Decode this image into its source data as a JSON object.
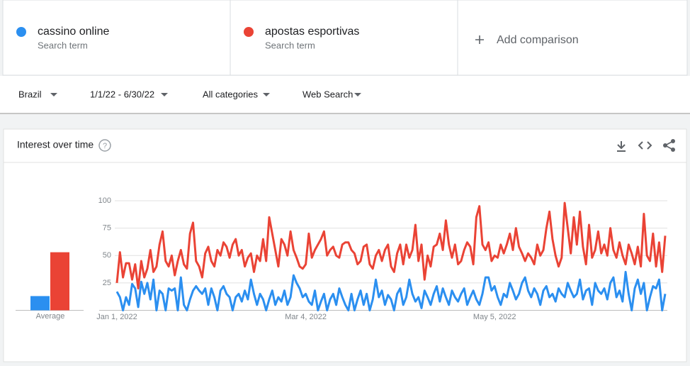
{
  "search_terms_subtitle": "Search term",
  "add_comparison": "Add comparison",
  "filters": [
    "Brazil",
    "1/1/22 - 6/30/22",
    "All categories",
    "Web Search"
  ],
  "chart_data": {
    "type": "line",
    "title": "Interest over time",
    "average_label": "Average",
    "categories": [
      "Jan 1, 2022",
      null,
      null,
      null,
      null,
      null,
      null,
      null,
      null,
      null,
      null,
      null,
      null,
      null,
      null,
      null,
      null,
      null,
      null,
      null,
      null,
      null,
      null,
      null,
      null,
      null,
      null,
      null,
      null,
      null,
      null,
      null,
      null,
      null,
      null,
      null,
      null,
      null,
      null,
      null,
      null,
      null,
      null,
      null,
      null,
      null,
      null,
      null,
      null,
      null,
      null,
      null,
      null,
      null,
      null,
      null,
      null,
      null,
      null,
      null,
      null,
      null,
      "Mar 4, 2022",
      null,
      null,
      null,
      null,
      null,
      null,
      null,
      null,
      null,
      null,
      null,
      null,
      null,
      null,
      null,
      null,
      null,
      null,
      null,
      null,
      null,
      null,
      null,
      null,
      null,
      null,
      null,
      null,
      null,
      null,
      null,
      null,
      null,
      null,
      null,
      null,
      null,
      null,
      null,
      null,
      null,
      null,
      null,
      null,
      null,
      null,
      null,
      null,
      null,
      null,
      null,
      null,
      null,
      null,
      null,
      null,
      null,
      null,
      null,
      null,
      null,
      "May 5, 2022",
      null,
      null,
      null,
      null,
      null,
      null,
      null,
      null,
      null,
      null,
      null,
      null,
      null,
      null,
      null,
      null,
      null,
      null,
      null,
      null,
      null,
      null,
      null,
      null,
      null,
      null,
      null,
      null,
      null,
      null,
      null,
      null,
      null,
      null,
      null,
      null,
      null,
      null,
      null,
      null,
      null,
      null,
      null,
      null,
      null,
      null,
      null,
      null,
      null,
      null,
      null,
      null,
      null,
      null,
      null,
      null
    ],
    "ylim": [
      0,
      100
    ],
    "yticks": [
      25,
      50,
      75,
      100
    ],
    "grid": true,
    "series": [
      {
        "name": "cassino online",
        "color": "#2b8ff0",
        "average": 13,
        "values": [
          17,
          12,
          0,
          12,
          5,
          24,
          20,
          3,
          26,
          15,
          25,
          10,
          28,
          0,
          18,
          15,
          0,
          20,
          18,
          20,
          0,
          30,
          5,
          0,
          10,
          18,
          22,
          18,
          15,
          20,
          5,
          20,
          12,
          0,
          18,
          22,
          15,
          12,
          0,
          12,
          15,
          8,
          18,
          10,
          28,
          15,
          5,
          15,
          10,
          0,
          10,
          18,
          5,
          12,
          8,
          18,
          5,
          12,
          32,
          25,
          20,
          12,
          15,
          8,
          5,
          18,
          0,
          8,
          15,
          0,
          10,
          15,
          5,
          20,
          12,
          5,
          0,
          15,
          0,
          10,
          18,
          5,
          15,
          0,
          10,
          28,
          12,
          18,
          5,
          14,
          10,
          0,
          15,
          20,
          5,
          12,
          28,
          15,
          8,
          12,
          2,
          18,
          12,
          5,
          15,
          22,
          8,
          20,
          12,
          5,
          18,
          12,
          8,
          15,
          20,
          5,
          12,
          18,
          10,
          5,
          15,
          30,
          30,
          18,
          22,
          12,
          5,
          15,
          12,
          25,
          18,
          10,
          15,
          25,
          30,
          18,
          12,
          20,
          15,
          5,
          18,
          22,
          12,
          15,
          8,
          20,
          15,
          12,
          25,
          18,
          12,
          15,
          28,
          10,
          18,
          20,
          5,
          25,
          18,
          15,
          20,
          10,
          25,
          30,
          12,
          18,
          8,
          35,
          15,
          0,
          20,
          28,
          15,
          25,
          0,
          12,
          22,
          20,
          28,
          0,
          15
        ]
      },
      {
        "name": "apostas esportivas",
        "color": "#ea4335",
        "average": 53,
        "values": [
          25,
          53,
          30,
          43,
          43,
          28,
          42,
          20,
          45,
          30,
          38,
          55,
          35,
          40,
          60,
          72,
          45,
          40,
          50,
          32,
          45,
          55,
          42,
          38,
          70,
          80,
          45,
          40,
          30,
          52,
          58,
          45,
          40,
          55,
          50,
          62,
          58,
          48,
          60,
          65,
          50,
          55,
          40,
          48,
          52,
          35,
          50,
          45,
          65,
          45,
          85,
          70,
          55,
          40,
          65,
          60,
          50,
          72,
          55,
          48,
          40,
          38,
          42,
          70,
          48,
          55,
          60,
          65,
          72,
          50,
          55,
          58,
          50,
          48,
          60,
          62,
          62,
          55,
          52,
          42,
          45,
          58,
          60,
          42,
          38,
          50,
          55,
          45,
          55,
          60,
          40,
          35,
          52,
          60,
          42,
          60,
          48,
          55,
          78,
          45,
          60,
          28,
          50,
          40,
          58,
          60,
          70,
          55,
          82,
          60,
          48,
          60,
          42,
          45,
          55,
          62,
          58,
          42,
          85,
          95,
          60,
          55,
          62,
          45,
          50,
          48,
          60,
          52,
          60,
          70,
          55,
          75,
          58,
          52,
          45,
          52,
          48,
          42,
          60,
          50,
          55,
          75,
          90,
          65,
          50,
          40,
          48,
          98,
          75,
          52,
          85,
          60,
          90,
          58,
          42,
          78,
          48,
          55,
          72,
          52,
          60,
          50,
          75,
          55,
          48,
          62,
          50,
          42,
          60,
          52,
          42,
          58,
          40,
          88,
          50,
          45,
          70,
          40,
          62,
          35,
          68
        ]
      }
    ]
  }
}
